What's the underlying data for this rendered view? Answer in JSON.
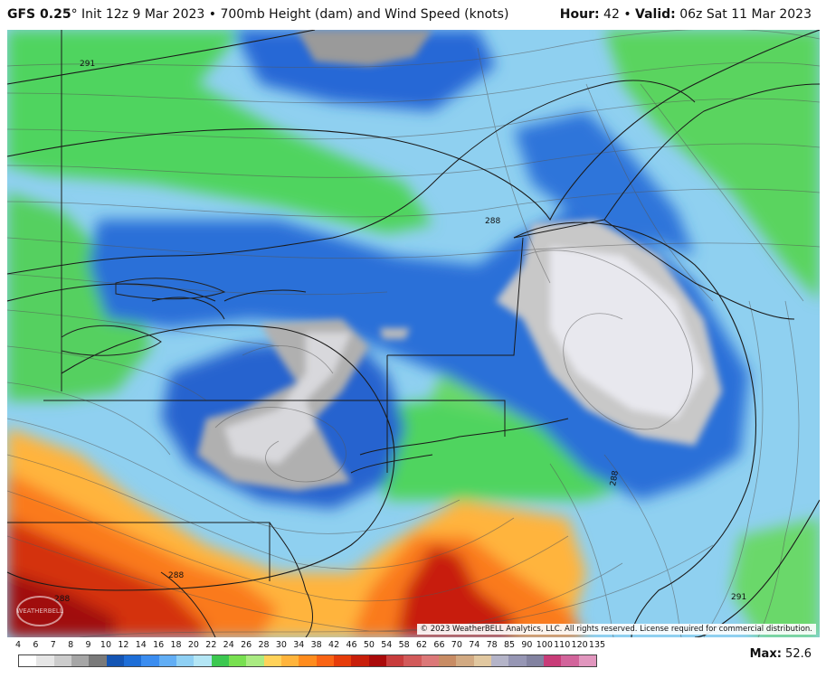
{
  "header": {
    "model": "GFS 0.25",
    "model_suffix": "°",
    "init": "Init 12z 9 Mar 2023",
    "separator": "•",
    "product": "700mb Height (dam) and Wind Speed (knots)",
    "hour_label": "Hour:",
    "hour_value": "42",
    "valid_label": "Valid:",
    "valid_value": "06z Sat 11 Mar 2023"
  },
  "map": {
    "contour_labels": [
      "291",
      "288",
      "288",
      "288",
      "291",
      "288"
    ],
    "copyright": "© 2023 WeatherBELL Analytics, LLC. All rights reserved. License required for commercial distribution.",
    "logo_text": "WEATHERBELL"
  },
  "legend": {
    "ticks": [
      "4",
      "6",
      "7",
      "8",
      "9",
      "10",
      "12",
      "14",
      "16",
      "18",
      "20",
      "22",
      "24",
      "26",
      "28",
      "30",
      "34",
      "38",
      "42",
      "46",
      "50",
      "54",
      "58",
      "62",
      "66",
      "70",
      "74",
      "78",
      "85",
      "90",
      "100",
      "110",
      "120",
      "135"
    ],
    "colors": [
      "#ffffff",
      "#e6e6e6",
      "#cccccc",
      "#a6a6a6",
      "#7a7a7a",
      "#1455b4",
      "#1e6ed7",
      "#3b8df0",
      "#62aef5",
      "#8fd0f4",
      "#b4e6f5",
      "#3cc850",
      "#78e050",
      "#aaeb82",
      "#ffd25a",
      "#ffb43c",
      "#ff8c1e",
      "#fa6414",
      "#e63c0a",
      "#c81e0a",
      "#aa0a0a",
      "#c83c3c",
      "#d25a5a",
      "#dc7878",
      "#c88c64",
      "#d2aa82",
      "#e1c8a0",
      "#b4b4c8",
      "#9696b4",
      "#8282a0",
      "#c83c78",
      "#d2649b",
      "#e196be"
    ]
  },
  "max": {
    "label": "Max:",
    "value": "52.6"
  }
}
